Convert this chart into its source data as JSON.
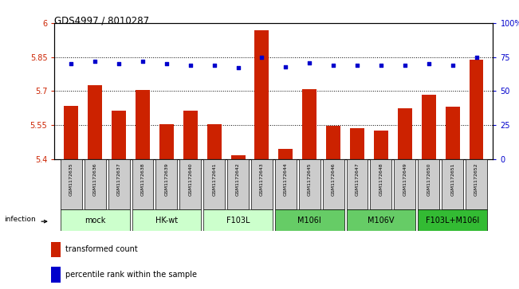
{
  "title": "GDS4997 / 8010287",
  "samples": [
    "GSM1172635",
    "GSM1172636",
    "GSM1172637",
    "GSM1172638",
    "GSM1172639",
    "GSM1172640",
    "GSM1172641",
    "GSM1172642",
    "GSM1172643",
    "GSM1172644",
    "GSM1172645",
    "GSM1172646",
    "GSM1172647",
    "GSM1172648",
    "GSM1172649",
    "GSM1172650",
    "GSM1172651",
    "GSM1172652"
  ],
  "bar_values": [
    5.635,
    5.725,
    5.615,
    5.705,
    5.552,
    5.613,
    5.555,
    5.415,
    5.97,
    5.445,
    5.71,
    5.545,
    5.535,
    5.525,
    5.625,
    5.685,
    5.63,
    5.84
  ],
  "percentile_values": [
    70,
    72,
    70,
    72,
    70,
    69,
    69,
    67,
    75,
    68,
    71,
    69,
    69,
    69,
    69,
    70,
    69,
    75
  ],
  "groups": [
    {
      "label": "mock",
      "start": 0,
      "end": 2,
      "color": "#ccffcc"
    },
    {
      "label": "HK-wt",
      "start": 3,
      "end": 5,
      "color": "#ccffcc"
    },
    {
      "label": "F103L",
      "start": 6,
      "end": 8,
      "color": "#ccffcc"
    },
    {
      "label": "M106I",
      "start": 9,
      "end": 11,
      "color": "#66cc66"
    },
    {
      "label": "M106V",
      "start": 12,
      "end": 14,
      "color": "#66cc66"
    },
    {
      "label": "F103L+M106I",
      "start": 15,
      "end": 17,
      "color": "#33bb33"
    }
  ],
  "bar_color": "#cc2200",
  "dot_color": "#0000cc",
  "ylim_left": [
    5.4,
    6.0
  ],
  "ylim_right": [
    0,
    100
  ],
  "yticks_left": [
    5.4,
    5.55,
    5.7,
    5.85,
    6.0
  ],
  "yticks_right": [
    0,
    25,
    50,
    75,
    100
  ],
  "ytick_labels_left": [
    "5.4",
    "5.55",
    "5.7",
    "5.85",
    "6"
  ],
  "ytick_labels_right": [
    "0",
    "25",
    "50",
    "75",
    "100%"
  ],
  "dotted_lines": [
    5.55,
    5.7,
    5.85
  ],
  "infection_label": "infection",
  "legend_bar_label": "transformed count",
  "legend_dot_label": "percentile rank within the sample",
  "sample_box_color": "#cccccc",
  "background_color": "#ffffff"
}
